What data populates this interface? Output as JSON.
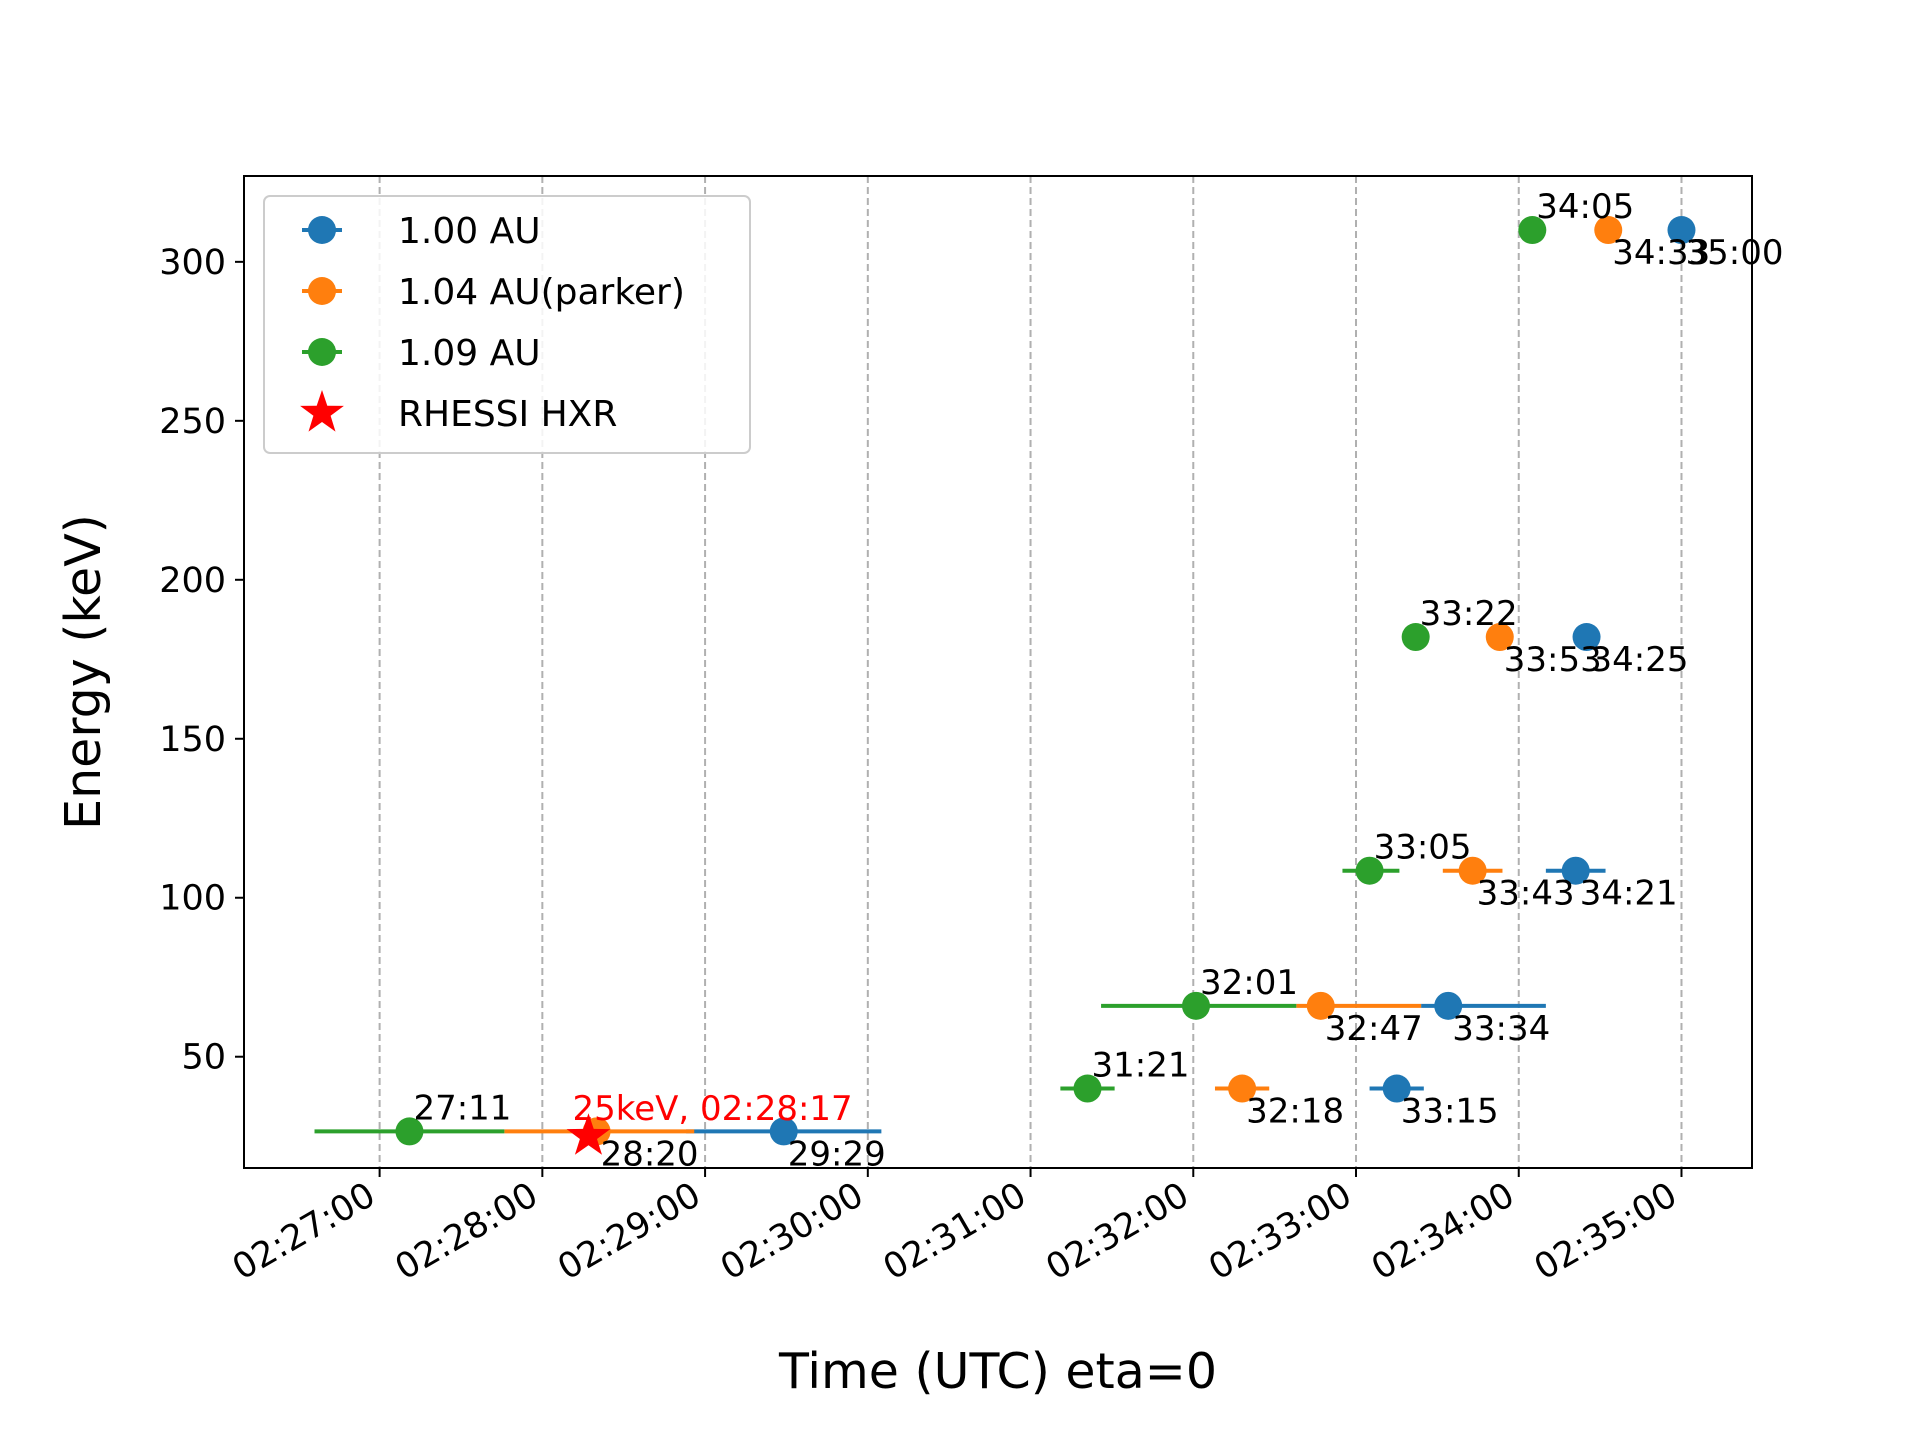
{
  "chart_data": {
    "type": "scatter",
    "xlabel": "Time (UTC) eta=0",
    "ylabel": "Energy (keV)",
    "x_unit": "time HH:MM:SS (UTC)",
    "xlim": [
      "02:26:10",
      "02:35:26"
    ],
    "ylim": [
      15,
      327
    ],
    "x_ticks": [
      "02:27:00",
      "02:28:00",
      "02:29:00",
      "02:30:00",
      "02:31:00",
      "02:32:00",
      "02:33:00",
      "02:34:00",
      "02:35:00"
    ],
    "y_ticks": [
      50,
      100,
      150,
      200,
      250,
      300
    ],
    "grid": "x-dashed",
    "legend_position": "top-left",
    "legend": [
      "1.00 AU",
      "1.04 AU(parker)",
      "1.09 AU",
      "RHESSI HXR"
    ],
    "series": [
      {
        "name": "1.00 AU",
        "color": "#1f77b4",
        "points": [
          {
            "x": "02:29:29",
            "xmin": "02:28:53",
            "xmax": "02:30:05",
            "y": 26.5,
            "label": "29:29"
          },
          {
            "x": "02:33:15",
            "xmin": "02:33:05",
            "xmax": "02:33:25",
            "y": 40,
            "label": "33:15"
          },
          {
            "x": "02:33:34",
            "xmin": "02:33:24",
            "xmax": "02:34:10",
            "y": 66,
            "label": "33:34"
          },
          {
            "x": "02:34:21",
            "xmin": "02:34:10",
            "xmax": "02:34:32",
            "y": 108.5,
            "label": "34:21"
          },
          {
            "x": "02:34:25",
            "xmin": "02:34:25",
            "xmax": "02:34:25",
            "y": 182,
            "label": "34:25"
          },
          {
            "x": "02:35:00",
            "xmin": "02:35:00",
            "xmax": "02:35:00",
            "y": 310,
            "label": "35:00"
          }
        ]
      },
      {
        "name": "1.04 AU(parker)",
        "color": "#ff7f0e",
        "points": [
          {
            "x": "02:28:20",
            "xmin": "02:27:46",
            "xmax": "02:28:56",
            "y": 26.5,
            "label": "28:20"
          },
          {
            "x": "02:32:18",
            "xmin": "02:32:08",
            "xmax": "02:32:28",
            "y": 40,
            "label": "32:18"
          },
          {
            "x": "02:32:47",
            "xmin": "02:32:38",
            "xmax": "02:33:24",
            "y": 66,
            "label": "32:47"
          },
          {
            "x": "02:33:43",
            "xmin": "02:33:32",
            "xmax": "02:33:54",
            "y": 108.5,
            "label": "33:43"
          },
          {
            "x": "02:33:53",
            "xmin": "02:33:53",
            "xmax": "02:33:53",
            "y": 182,
            "label": "33:53"
          },
          {
            "x": "02:34:33",
            "xmin": "02:34:33",
            "xmax": "02:34:33",
            "y": 310,
            "label": "34:33"
          }
        ]
      },
      {
        "name": "1.09 AU",
        "color": "#2ca02c",
        "points": [
          {
            "x": "02:27:11",
            "xmin": "02:26:36",
            "xmax": "02:27:46",
            "y": 26.5,
            "label": "27:11"
          },
          {
            "x": "02:31:21",
            "xmin": "02:31:11",
            "xmax": "02:31:31",
            "y": 40,
            "label": "31:21"
          },
          {
            "x": "02:32:01",
            "xmin": "02:31:26",
            "xmax": "02:32:38",
            "y": 66,
            "label": "32:01"
          },
          {
            "x": "02:33:05",
            "xmin": "02:32:55",
            "xmax": "02:33:16",
            "y": 108.5,
            "label": "33:05"
          },
          {
            "x": "02:33:22",
            "xmin": "02:33:22",
            "xmax": "02:33:22",
            "y": 182,
            "label": "33:22"
          },
          {
            "x": "02:34:05",
            "xmin": "02:34:05",
            "xmax": "02:34:05",
            "y": 310,
            "label": "34:05"
          }
        ]
      }
    ],
    "marker": {
      "name": "RHESSI HXR",
      "color": "#ff0000",
      "x": "02:28:17",
      "y": 25,
      "label": "25keV, 02:28:17"
    }
  }
}
